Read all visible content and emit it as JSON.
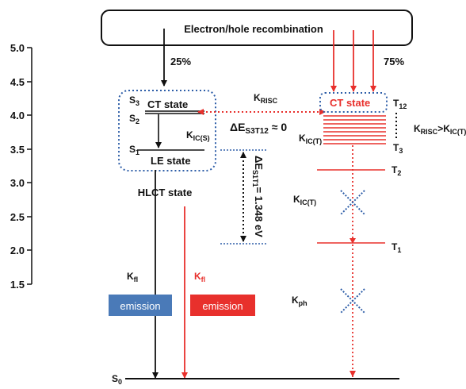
{
  "axis": {
    "ticks": [
      "5.0",
      "4.5",
      "4.0",
      "3.5",
      "3.0",
      "2.5",
      "2.0",
      "1.5"
    ]
  },
  "top_box": {
    "label": "Electron/hole recombination"
  },
  "split": {
    "left": "25%",
    "right": "75%"
  },
  "hlct": {
    "s3": "S3",
    "s2": "S2",
    "s1": "S1",
    "ct_label": "CT state",
    "le_label": "LE state",
    "kic": "KIC(S)",
    "title": "HLCT state"
  },
  "krisc": {
    "label": "KRISC"
  },
  "delta_s3t12": {
    "label": "ΔES3T12 ≈ 0"
  },
  "delta_s1t1": {
    "label": "ΔES1T1= 1.348 eV"
  },
  "triplet": {
    "ct_label": "CT state",
    "t12": "T12",
    "t3": "T3",
    "t2": "T2",
    "t1": "T1",
    "kic_top": "KIC(T)",
    "kic_mid": "KIC(T)",
    "kph": "Kph",
    "relation": "KRISC>KIC(T)"
  },
  "emission": {
    "kfl_left": "Kfl",
    "kfl_right": "Kfl",
    "box_left": "emission",
    "box_right": "emission"
  },
  "ground": {
    "label": "S0"
  },
  "colors": {
    "red": "#e8302c",
    "blue": "#2e5ea8",
    "emission_blue": "#4a7ab8",
    "black": "#111111"
  }
}
